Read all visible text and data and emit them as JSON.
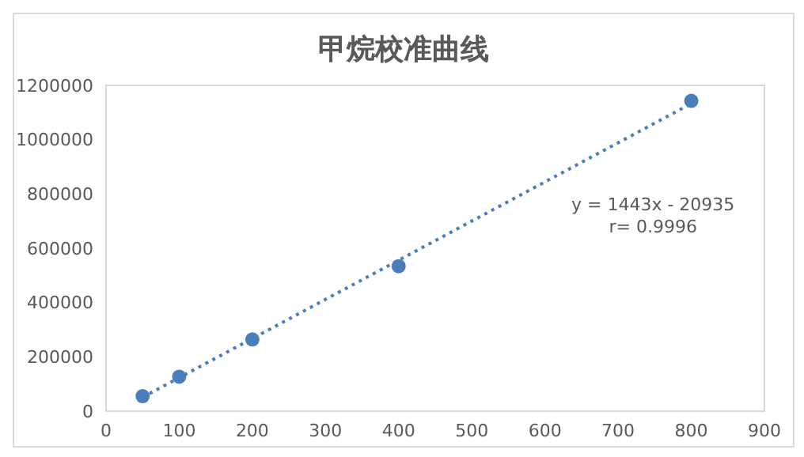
{
  "chart_data": {
    "type": "scatter",
    "title": "甲烷校准曲线",
    "annotations": [
      "y = 1443x - 20935",
      "r= 0.9996"
    ],
    "xlim": [
      0,
      900
    ],
    "xticks": [
      0,
      100,
      200,
      300,
      400,
      500,
      600,
      700,
      800,
      900
    ],
    "ylim": [
      0,
      1200000
    ],
    "yticks": [
      0,
      200000,
      400000,
      600000,
      800000,
      1000000,
      1200000
    ],
    "grid": false,
    "series": [
      {
        "color": "#4a7ebb",
        "marker": "circle",
        "x": [
          50,
          100,
          200,
          400,
          800
        ],
        "values": [
          55000,
          127000,
          264000,
          534000,
          1143000
        ]
      },
      {
        "type": "line",
        "color": "#4a7ebb",
        "line_style": "dotted",
        "marker": "none",
        "x": [
          50,
          800
        ],
        "values": [
          51000,
          1133000
        ]
      }
    ]
  }
}
